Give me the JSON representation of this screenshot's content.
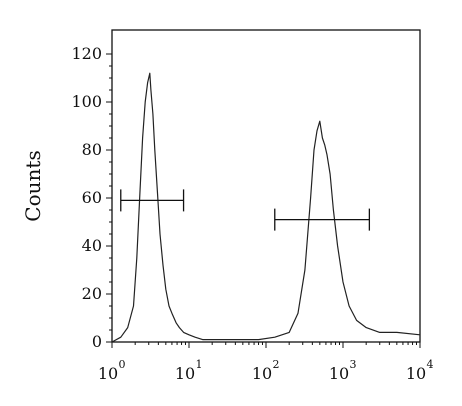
{
  "chart_data": {
    "type": "line",
    "title": "",
    "xlabel": "",
    "ylabel": "Counts",
    "xscale": "log",
    "xlim": [
      1,
      10000
    ],
    "ylim": [
      0,
      130
    ],
    "x_ticks": [
      {
        "base": "10",
        "exp": "0",
        "value": 1
      },
      {
        "base": "10",
        "exp": "1",
        "value": 10
      },
      {
        "base": "10",
        "exp": "2",
        "value": 100
      },
      {
        "base": "10",
        "exp": "3",
        "value": 1000
      },
      {
        "base": "10",
        "exp": "4",
        "value": 10000
      }
    ],
    "y_ticks": [
      "0",
      "20",
      "40",
      "60",
      "80",
      "100",
      "120"
    ],
    "grid": false,
    "legend": "none",
    "line_color": "#222222",
    "series": [
      {
        "x": [
          1.0,
          1.3,
          1.6,
          1.9,
          2.1,
          2.3,
          2.5,
          2.7,
          2.9,
          3.1,
          3.2,
          3.4,
          3.6,
          3.9,
          4.2,
          4.6,
          5.0,
          5.5,
          6.0,
          6.8,
          7.5,
          8.5,
          10,
          12,
          15,
          20,
          30,
          50,
          80,
          130,
          200,
          260,
          320,
          380,
          420,
          460,
          500,
          540,
          580,
          620,
          680,
          750,
          850,
          1000,
          1200,
          1500,
          2000,
          3000,
          5000,
          10000
        ],
        "y": [
          0,
          2,
          6,
          15,
          35,
          62,
          85,
          100,
          108,
          112,
          105,
          95,
          80,
          62,
          45,
          32,
          22,
          15,
          12,
          8,
          6,
          4,
          3,
          2,
          1,
          1,
          1,
          1,
          1,
          2,
          4,
          12,
          30,
          60,
          80,
          88,
          92,
          85,
          82,
          78,
          70,
          55,
          40,
          25,
          15,
          9,
          6,
          4,
          4,
          3
        ]
      }
    ],
    "markers": [
      {
        "x_start": 1.3,
        "x_end": 8.5,
        "y": 59
      },
      {
        "x_start": 130,
        "x_end": 2200,
        "y": 51
      }
    ]
  }
}
